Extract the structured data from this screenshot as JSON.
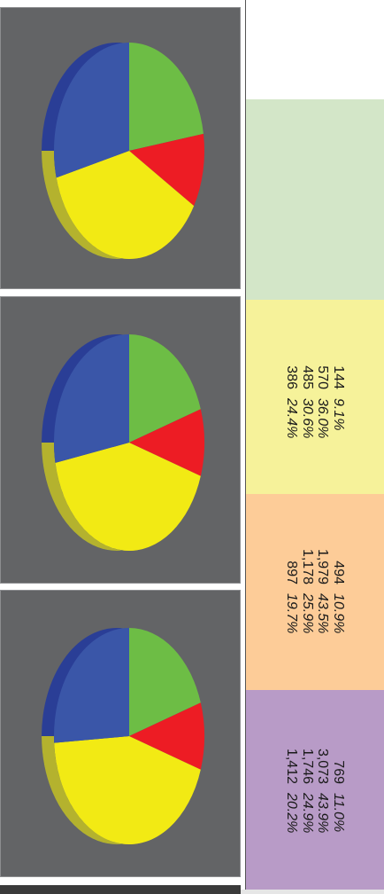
{
  "colors": {
    "panel_bg": "#636466",
    "slice_colors": [
      "#6dbd45",
      "#ed1c24",
      "#f2ea14",
      "#3a56a8"
    ],
    "slice_side_colors": [
      "#4f8a32",
      "#a31419",
      "#b4b22e",
      "#2a3e96"
    ],
    "band_colors": [
      "#d3e6c8",
      "#f6f29a",
      "#fdcc98",
      "#b89bc7"
    ]
  },
  "chart_data": [
    {
      "type": "pie",
      "values": [
        0.225,
        0.11,
        0.375,
        0.29
      ]
    },
    {
      "type": "pie",
      "values": [
        0.2,
        0.1,
        0.42,
        0.28
      ]
    },
    {
      "type": "pie",
      "values": [
        0.2,
        0.1,
        0.44,
        0.26
      ]
    }
  ],
  "table": {
    "groups": [
      {
        "rows": []
      },
      {
        "rows": [
          {
            "count": "144",
            "pct": "9.1%"
          },
          {
            "count": "570",
            "pct": "36.0%"
          },
          {
            "count": "485",
            "pct": "30.6%"
          },
          {
            "count": "386",
            "pct": "24.4%"
          }
        ]
      },
      {
        "rows": [
          {
            "count": "494",
            "pct": "10.9%"
          },
          {
            "count": "1,979",
            "pct": "43.5%"
          },
          {
            "count": "1,178",
            "pct": "25.9%"
          },
          {
            "count": "897",
            "pct": "19.7%"
          }
        ]
      },
      {
        "rows": [
          {
            "count": "769",
            "pct": "11.0%"
          },
          {
            "count": "3,073",
            "pct": "43.9%"
          },
          {
            "count": "1,746",
            "pct": "24.9%"
          },
          {
            "count": "1,412",
            "pct": "20.2%"
          }
        ]
      }
    ]
  }
}
